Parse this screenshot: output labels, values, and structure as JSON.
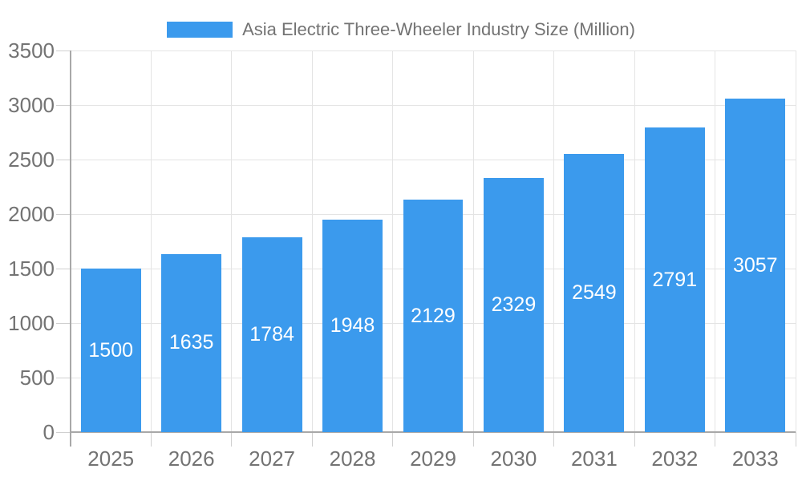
{
  "chart_data": {
    "type": "bar",
    "title": "Asia Electric Three-Wheeler Industry Size (Million)",
    "legend": {
      "position": "top",
      "entries": [
        "Asia Electric Three-Wheeler Industry Size (Million)"
      ]
    },
    "categories": [
      "2025",
      "2026",
      "2027",
      "2028",
      "2029",
      "2030",
      "2031",
      "2032",
      "2033"
    ],
    "series": [
      {
        "name": "Asia Electric Three-Wheeler Industry Size (Million)",
        "values": [
          1500,
          1635,
          1784,
          1948,
          2129,
          2329,
          2549,
          2791,
          3057
        ]
      }
    ],
    "value_labels_shown": true,
    "xlabel": "",
    "ylabel": "",
    "ylim": [
      0,
      3500
    ],
    "ytick_step": 500,
    "grid": true,
    "colors": {
      "bar": "#3B9AED",
      "value_label": "#ffffff",
      "axis_text": "#737373",
      "grid_line": "#e4e4e4",
      "tick_line": "#d0d0d0",
      "axis_line": "#a8a8a8",
      "background": "#ffffff"
    }
  }
}
